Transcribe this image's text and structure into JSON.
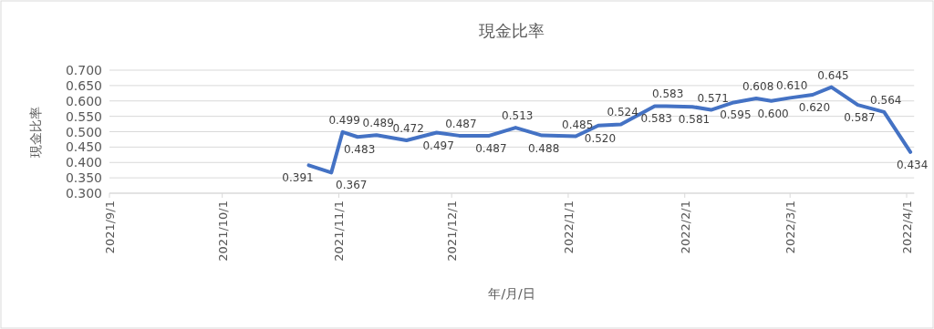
{
  "chart_data": {
    "type": "line",
    "title": "現金比率",
    "xlabel": "年/月/日",
    "ylabel": "現金比率",
    "x": [
      "2021-10-24",
      "2021-10-30",
      "2021-11-02",
      "2021-11-06",
      "2021-11-11",
      "2021-11-19",
      "2021-11-27",
      "2021-12-03",
      "2021-12-11",
      "2021-12-18",
      "2021-12-25",
      "2022-01-03",
      "2022-01-09",
      "2022-01-15",
      "2022-01-24",
      "2022-01-27",
      "2022-02-03",
      "2022-02-08",
      "2022-02-14",
      "2022-02-20",
      "2022-02-24",
      "2022-03-01",
      "2022-03-07",
      "2022-03-12",
      "2022-03-19",
      "2022-03-26",
      "2022-04-02"
    ],
    "series": [
      {
        "color": "#4472c4",
        "values": [
          0.391,
          0.367,
          0.499,
          0.483,
          0.489,
          0.472,
          0.497,
          0.487,
          0.487,
          0.513,
          0.488,
          0.485,
          0.52,
          0.524,
          0.583,
          0.583,
          0.581,
          0.571,
          0.595,
          0.608,
          0.6,
          0.61,
          0.62,
          0.645,
          0.587,
          0.564,
          0.434
        ],
        "value_labels": [
          "0.391",
          "0.367",
          "0.499",
          "0.483",
          "0.489",
          "0.472",
          "0.497",
          "0.487",
          "0.487",
          "0.513",
          "0.488",
          "0.485",
          "0.520",
          "0.524",
          "0.583",
          "0.583",
          "0.581",
          "0.571",
          "0.595",
          "0.608",
          "0.600",
          "0.610",
          "0.620",
          "0.645",
          "0.587",
          "0.564",
          "0.434"
        ]
      }
    ],
    "xlim": [
      "2021-09-01",
      "2022-04-03"
    ],
    "xticks": [
      {
        "value": "2021-09-01",
        "label": "2021/9/1"
      },
      {
        "value": "2021-10-01",
        "label": "2021/10/1"
      },
      {
        "value": "2021-11-01",
        "label": "2021/11/1"
      },
      {
        "value": "2021-12-01",
        "label": "2021/12/1"
      },
      {
        "value": "2022-01-01",
        "label": "2022/1/1"
      },
      {
        "value": "2022-02-01",
        "label": "2022/2/1"
      },
      {
        "value": "2022-03-01",
        "label": "2022/3/1"
      },
      {
        "value": "2022-04-01",
        "label": "2022/4/1"
      }
    ],
    "ylim": [
      0.3,
      0.7
    ],
    "yticks": [
      {
        "value": 0.3,
        "label": "0.300"
      },
      {
        "value": 0.35,
        "label": "0.350"
      },
      {
        "value": 0.4,
        "label": "0.400"
      },
      {
        "value": 0.45,
        "label": "0.450"
      },
      {
        "value": 0.5,
        "label": "0.500"
      },
      {
        "value": 0.55,
        "label": "0.550"
      },
      {
        "value": 0.6,
        "label": "0.600"
      },
      {
        "value": 0.65,
        "label": "0.650"
      },
      {
        "value": 0.7,
        "label": "0.700"
      }
    ],
    "grid": "y",
    "marker": "none",
    "line_style": "solid"
  }
}
